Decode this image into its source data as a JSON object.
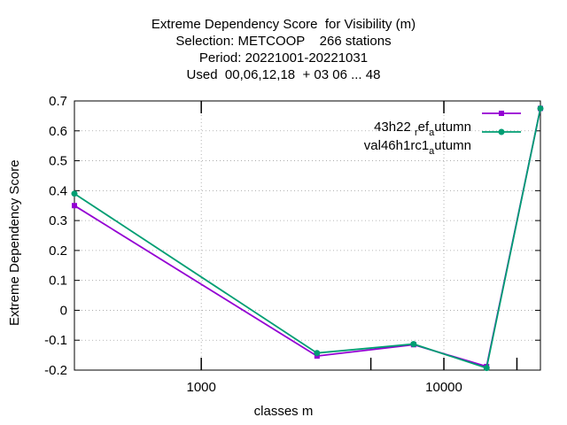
{
  "chart_data": {
    "type": "line",
    "title_lines": [
      "Extreme Dependency Score  for Visibility (m)",
      "Selection: METCOOP    266 stations",
      "Period: 20221001-20221031",
      "Used  00,06,12,18  + 03 06 ... 48"
    ],
    "xlabel": "classes m",
    "ylabel": "Extreme Dependency Score",
    "x_scale": "log",
    "xlim": [
      300,
      25000
    ],
    "ylim": [
      -0.2,
      0.7
    ],
    "x_ticks": [
      1000,
      10000
    ],
    "x_tick_labels": [
      "1000",
      "10000"
    ],
    "y_ticks": [
      -0.2,
      -0.1,
      0,
      0.1,
      0.2,
      0.3,
      0.4,
      0.5,
      0.6,
      0.7
    ],
    "y_tick_labels": [
      "-0.2",
      "-0.1",
      "0",
      "0.1",
      "0.2",
      "0.3",
      "0.4",
      "0.5",
      "0.6",
      "0.7"
    ],
    "grid": true,
    "legend_position": "top-right",
    "series": [
      {
        "name": "43h22_ref_autumn",
        "legend_parts": [
          {
            "text": "43h22 ",
            "sub": ""
          },
          {
            "text": "ref",
            "sub": "down"
          },
          {
            "text": "ef",
            "sub": ""
          },
          {
            "text": "a",
            "sub": "down"
          },
          {
            "text": "utumn",
            "sub": ""
          }
        ],
        "color": "#9400d3",
        "x": [
          300,
          3000,
          7500,
          15000,
          25000
        ],
        "y": [
          0.35,
          -0.153,
          -0.115,
          -0.188,
          0.675
        ]
      },
      {
        "name": "val46h1rc1_autumn",
        "legend_parts": [
          {
            "text": "val46h1rc1",
            "sub": ""
          },
          {
            "text": "a",
            "sub": "down"
          },
          {
            "text": "utumn",
            "sub": ""
          }
        ],
        "color": "#009e73",
        "x": [
          300,
          3000,
          7500,
          15000,
          25000
        ],
        "y": [
          0.39,
          -0.143,
          -0.113,
          -0.193,
          0.675
        ]
      }
    ],
    "extra_x_marks": [
      5000,
      20000
    ]
  }
}
